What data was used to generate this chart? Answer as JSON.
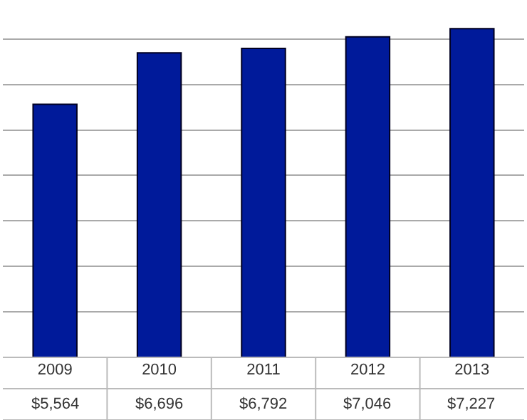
{
  "chart_data": {
    "type": "bar",
    "categories": [
      "2009",
      "2010",
      "2011",
      "2012",
      "2013"
    ],
    "values": [
      5564,
      6696,
      6792,
      7046,
      7227
    ],
    "value_labels": [
      "$5,564",
      "$6,696",
      "$6,792",
      "$7,046",
      "$7,227"
    ],
    "color": "#001a9a",
    "grid": "y",
    "tick_labels": "x",
    "legend": false
  }
}
